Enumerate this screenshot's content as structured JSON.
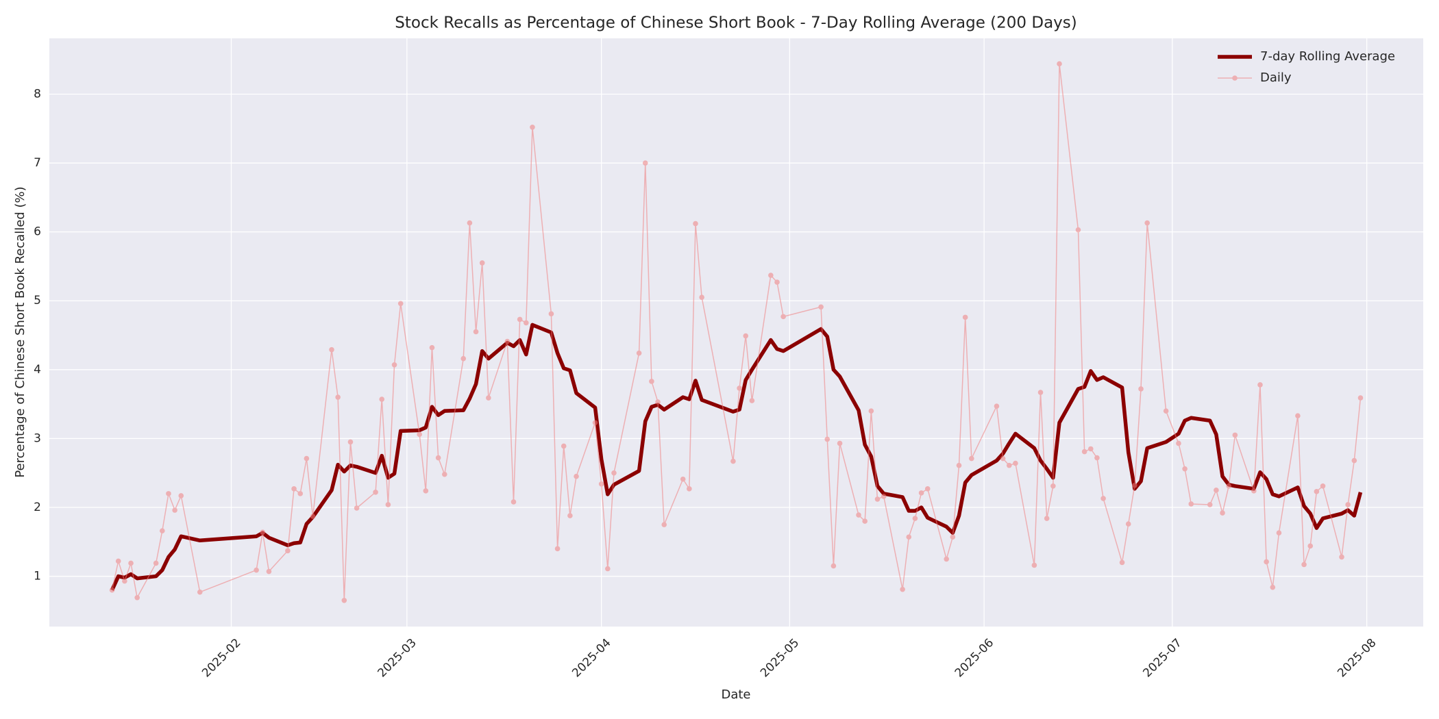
{
  "chart_data": {
    "type": "line",
    "title": "Stock Recalls as Percentage of Chinese Short Book - 7-Day Rolling Average (200 Days)",
    "xlabel": "Date",
    "ylabel": "Percentage of Chinese Short Book Recalled (%)",
    "x": [
      12,
      13,
      14,
      15,
      16,
      19,
      20,
      21,
      22,
      23,
      26,
      35,
      36,
      37,
      40,
      41,
      42,
      43,
      44,
      47,
      48,
      49,
      50,
      51,
      54,
      55,
      56,
      57,
      58,
      61,
      62,
      63,
      64,
      65,
      68,
      69,
      70,
      71,
      72,
      75,
      76,
      77,
      78,
      79,
      82,
      83,
      84,
      85,
      86,
      89,
      90,
      91,
      92,
      96,
      97,
      98,
      99,
      100,
      103,
      104,
      105,
      106,
      111,
      112,
      113,
      114,
      117,
      118,
      119,
      125,
      126,
      127,
      128,
      131,
      132,
      133,
      134,
      135,
      138,
      139,
      140,
      141,
      142,
      145,
      146,
      147,
      148,
      149,
      153,
      154,
      155,
      156,
      159,
      160,
      161,
      162,
      163,
      166,
      167,
      168,
      169,
      170,
      173,
      174,
      175,
      176,
      177,
      180,
      182,
      183,
      184,
      187,
      188,
      189,
      190,
      191,
      194,
      195,
      196,
      197,
      198,
      201,
      202,
      203,
      204,
      205,
      208,
      209,
      210,
      211
    ],
    "series": [
      {
        "name": "7-day Rolling Average",
        "color": "#8b0000",
        "width": 5.5,
        "markers": false,
        "opacity": 1,
        "values": [
          0.8,
          1.0,
          0.98,
          1.03,
          0.97,
          1.0,
          1.09,
          1.28,
          1.39,
          1.58,
          1.52,
          1.58,
          1.63,
          1.56,
          1.45,
          1.48,
          1.49,
          1.76,
          1.86,
          2.25,
          2.62,
          2.52,
          2.61,
          2.59,
          2.5,
          2.75,
          2.43,
          2.49,
          3.11,
          3.12,
          3.16,
          3.46,
          3.34,
          3.4,
          3.41,
          3.58,
          3.79,
          4.27,
          4.16,
          4.39,
          4.34,
          4.43,
          4.22,
          4.65,
          4.54,
          4.24,
          4.02,
          3.99,
          3.66,
          3.45,
          2.7,
          2.19,
          2.33,
          2.53,
          3.25,
          3.46,
          3.49,
          3.42,
          3.6,
          3.57,
          3.84,
          3.56,
          3.39,
          3.42,
          3.85,
          4.0,
          4.43,
          4.3,
          4.27,
          4.59,
          4.48,
          4.0,
          3.9,
          3.41,
          2.91,
          2.74,
          2.31,
          2.2,
          2.15,
          1.95,
          1.95,
          2.0,
          1.85,
          1.72,
          1.63,
          1.88,
          2.36,
          2.47,
          2.68,
          2.78,
          2.93,
          3.07,
          2.86,
          2.68,
          2.56,
          2.43,
          3.23,
          3.72,
          3.75,
          3.98,
          3.85,
          3.89,
          3.74,
          2.8,
          2.27,
          2.38,
          2.86,
          2.95,
          3.07,
          3.26,
          3.3,
          3.26,
          3.06,
          2.45,
          2.33,
          2.31,
          2.27,
          2.51,
          2.41,
          2.19,
          2.16,
          2.29,
          2.02,
          1.91,
          1.7,
          1.84,
          1.91,
          1.96,
          1.88,
          2.22
        ]
      },
      {
        "name": "Daily",
        "color": "#f08080",
        "width": 1.5,
        "markers": true,
        "opacity": 0.55,
        "values": [
          0.8,
          1.22,
          0.93,
          1.19,
          0.69,
          1.19,
          1.66,
          2.2,
          1.96,
          2.17,
          0.77,
          1.09,
          1.64,
          1.07,
          1.37,
          2.27,
          2.2,
          2.71,
          1.87,
          4.29,
          3.6,
          0.65,
          2.95,
          1.99,
          2.22,
          3.57,
          2.04,
          4.07,
          4.96,
          3.06,
          2.24,
          4.32,
          2.72,
          2.48,
          4.16,
          6.13,
          4.55,
          5.55,
          3.59,
          4.41,
          2.08,
          4.73,
          4.68,
          7.52,
          4.81,
          1.4,
          2.89,
          1.88,
          2.45,
          3.23,
          2.34,
          1.11,
          2.5,
          4.24,
          7.0,
          3.83,
          3.53,
          1.75,
          2.41,
          2.27,
          6.12,
          5.05,
          2.67,
          3.73,
          4.49,
          3.55,
          5.37,
          5.27,
          4.77,
          4.91,
          2.99,
          1.15,
          2.93,
          1.89,
          1.8,
          3.4,
          2.12,
          2.16,
          0.81,
          1.57,
          1.84,
          2.21,
          2.27,
          1.25,
          1.57,
          2.61,
          4.76,
          2.71,
          3.47,
          2.71,
          2.61,
          2.64,
          1.16,
          3.67,
          1.84,
          2.31,
          8.44,
          6.03,
          2.81,
          2.85,
          2.72,
          2.13,
          1.2,
          1.76,
          2.32,
          3.72,
          6.13,
          3.4,
          2.93,
          2.56,
          2.05,
          2.04,
          2.25,
          1.92,
          2.31,
          3.05,
          2.24,
          3.78,
          1.21,
          0.84,
          1.63,
          3.33,
          1.17,
          1.44,
          2.23,
          2.31,
          1.28,
          2.04,
          2.68,
          3.59
        ]
      }
    ],
    "xlim": [
      2,
      221
    ],
    "xticks": [
      {
        "value": 31,
        "label": "2025-02"
      },
      {
        "value": 59,
        "label": "2025-03"
      },
      {
        "value": 90,
        "label": "2025-04"
      },
      {
        "value": 120,
        "label": "2025-05"
      },
      {
        "value": 151,
        "label": "2025-06"
      },
      {
        "value": 181,
        "label": "2025-07"
      },
      {
        "value": 212,
        "label": "2025-08"
      }
    ],
    "ylim": [
      0.27,
      8.81
    ],
    "yticks": [
      1,
      2,
      3,
      4,
      5,
      6,
      7,
      8
    ],
    "grid": true,
    "legend": "upper right",
    "background": "#eaeaf2"
  }
}
